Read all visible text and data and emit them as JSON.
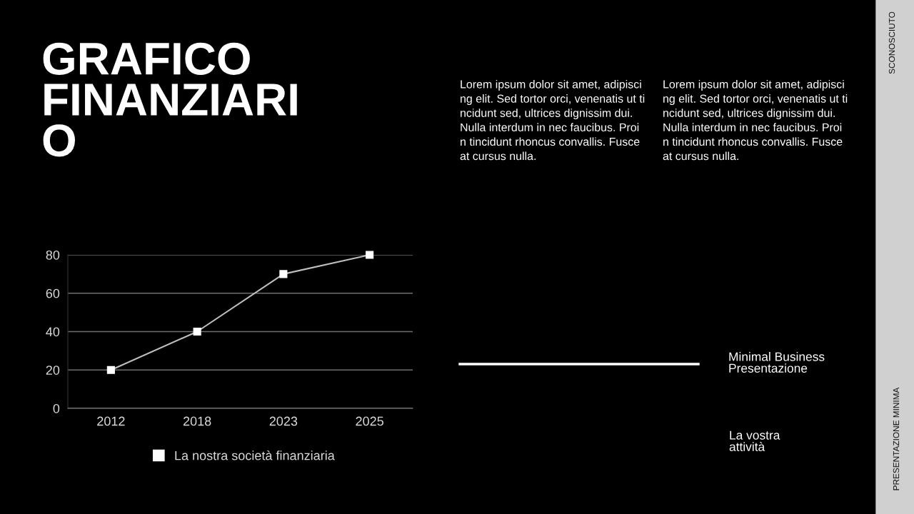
{
  "chart_data": {
    "type": "line",
    "title": "GRAFICO\nFINANZIARI\nO",
    "categories": [
      "2012",
      "2018",
      "2023",
      "2025"
    ],
    "series": [
      {
        "name": "La nostra società finanziaria",
        "color": "#bfbfbf",
        "values": [
          20,
          40,
          70,
          80
        ]
      }
    ],
    "ylim": [
      0,
      80
    ],
    "yticks": [
      0,
      20,
      40,
      60,
      80
    ],
    "grid": "y",
    "legend": "bottom",
    "marker": "square",
    "line_style": "solid",
    "annotations": [
      "Lorem ipsum dolor sit amet, adipisci\nng elit. Sed tortor orci, venenatis ut ti\nncidunt sed, ultrices dignissim dui.\nNulla interdum in nec faucibus. Proi\nn tincidunt rhoncus convallis. Fusce\nat cursus nulla.",
      "Lorem ipsum dolor sit amet, adipisci\nng elit. Sed tortor orci, venenatis ut ti\nncidunt sed, ultrices dignissim dui.\nNulla interdum in nec faucibus. Proi\nn tincidunt rhoncus convallis. Fusce\nat cursus nulla.",
      "Minimal Business\nPresentazione",
      "La vostra\nattività",
      "SCONOSCIUTO",
      "PRESENTAZIONE MINIMA"
    ]
  }
}
